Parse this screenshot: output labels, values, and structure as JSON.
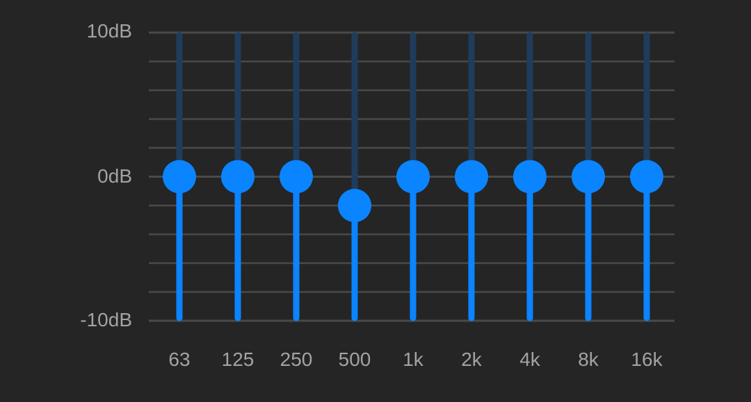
{
  "scale": {
    "max_label": "10dB",
    "mid_label": "0dB",
    "min_label": "-10dB",
    "max_db": 10,
    "min_db": -10,
    "grid_steps": 10
  },
  "bands": [
    {
      "label": "63",
      "gain_db": 0
    },
    {
      "label": "125",
      "gain_db": 0
    },
    {
      "label": "250",
      "gain_db": 0
    },
    {
      "label": "500",
      "gain_db": -2
    },
    {
      "label": "1k",
      "gain_db": 0
    },
    {
      "label": "2k",
      "gain_db": 0
    },
    {
      "label": "4k",
      "gain_db": 0
    },
    {
      "label": "8k",
      "gain_db": 0
    },
    {
      "label": "16k",
      "gain_db": 0
    }
  ],
  "colors": {
    "background": "#252525",
    "grid": "#4a4a4a",
    "track_upper": "#1f3c5c",
    "track_lower": "#0a84ff",
    "knob": "#0a84ff",
    "label": "#a3a3a3"
  }
}
